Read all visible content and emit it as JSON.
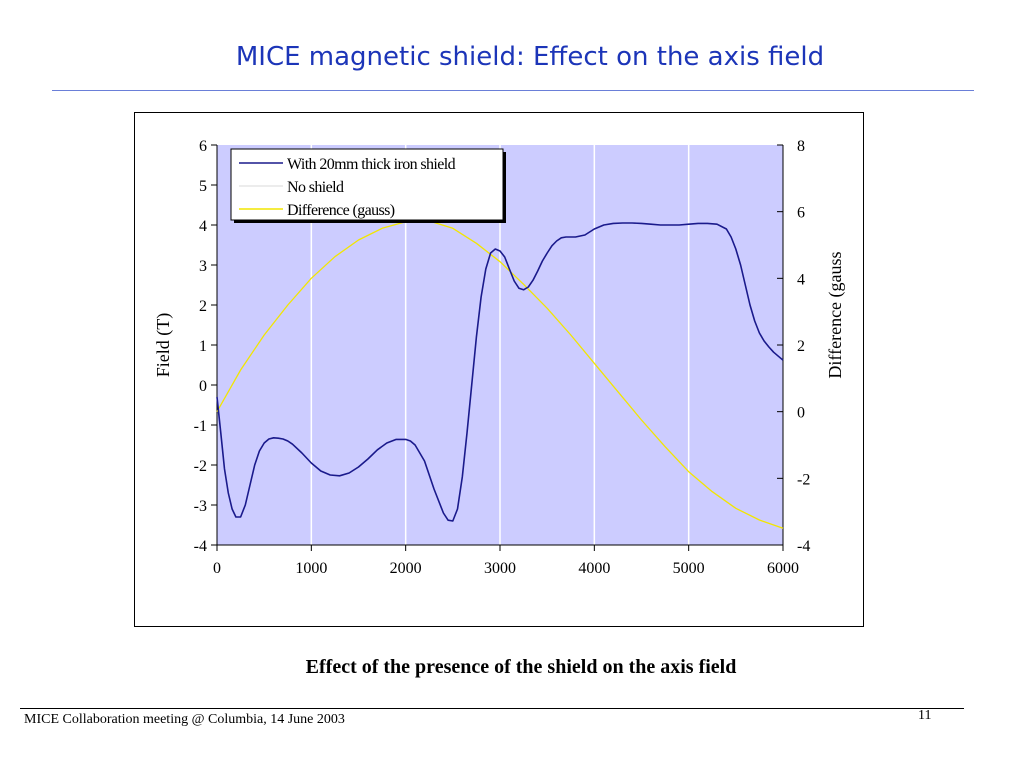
{
  "slide": {
    "title": "MICE magnetic shield: Effect on the axis field",
    "caption": "Effect of the presence of the  shield on the axis field",
    "footer": "MICE Collaboration meeting @ Columbia, 14 June 2003",
    "page_number": "11"
  },
  "chart_data": {
    "type": "line",
    "xlabel": "",
    "ylabel": "Field (T)",
    "y2label": "Difference (gauss",
    "xlim": [
      0,
      6000
    ],
    "ylim": [
      -4,
      6
    ],
    "y2lim": [
      -4,
      8
    ],
    "xticks": [
      "0",
      "1000",
      "2000",
      "3000",
      "4000",
      "5000",
      "6000"
    ],
    "yticks": [
      "6",
      "5",
      "4",
      "3",
      "2",
      "1",
      "0",
      "-1",
      "-2",
      "-3",
      "-4"
    ],
    "y2ticks": [
      "8",
      "6",
      "4",
      "2",
      "0",
      "-2",
      "-4"
    ],
    "grid": "vertical",
    "legend_position": "top-left",
    "plot_background": "#ccccff",
    "series": [
      {
        "name": "With 20mm thick iron shield",
        "axis": "left",
        "color": "#1a1a8c",
        "x": [
          0,
          40,
          80,
          120,
          160,
          200,
          250,
          300,
          350,
          400,
          450,
          500,
          550,
          600,
          650,
          700,
          750,
          800,
          900,
          1000,
          1100,
          1200,
          1300,
          1400,
          1500,
          1600,
          1700,
          1800,
          1900,
          2000,
          2050,
          2100,
          2200,
          2300,
          2400,
          2450,
          2500,
          2550,
          2600,
          2650,
          2700,
          2750,
          2800,
          2850,
          2900,
          2950,
          3000,
          3050,
          3100,
          3150,
          3200,
          3250,
          3300,
          3350,
          3400,
          3450,
          3500,
          3550,
          3600,
          3650,
          3700,
          3800,
          3900,
          4000,
          4100,
          4200,
          4300,
          4400,
          4500,
          4600,
          4700,
          4800,
          4900,
          5000,
          5100,
          5200,
          5300,
          5400,
          5450,
          5500,
          5550,
          5600,
          5650,
          5700,
          5750,
          5800,
          5850,
          5900,
          5950,
          6000
        ],
        "values": [
          -0.3,
          -1.2,
          -2.1,
          -2.7,
          -3.1,
          -3.3,
          -3.3,
          -3.0,
          -2.5,
          -2.0,
          -1.65,
          -1.45,
          -1.35,
          -1.32,
          -1.33,
          -1.35,
          -1.4,
          -1.48,
          -1.7,
          -1.95,
          -2.15,
          -2.25,
          -2.27,
          -2.2,
          -2.05,
          -1.85,
          -1.62,
          -1.45,
          -1.36,
          -1.36,
          -1.4,
          -1.5,
          -1.9,
          -2.6,
          -3.2,
          -3.38,
          -3.4,
          -3.1,
          -2.3,
          -1.2,
          0.0,
          1.2,
          2.2,
          2.9,
          3.3,
          3.4,
          3.35,
          3.2,
          2.9,
          2.6,
          2.42,
          2.38,
          2.45,
          2.62,
          2.85,
          3.1,
          3.3,
          3.48,
          3.6,
          3.68,
          3.7,
          3.7,
          3.75,
          3.9,
          4.0,
          4.04,
          4.05,
          4.05,
          4.04,
          4.02,
          4.0,
          4.0,
          4.0,
          4.02,
          4.04,
          4.04,
          4.02,
          3.9,
          3.7,
          3.4,
          3.0,
          2.5,
          2.0,
          1.6,
          1.3,
          1.1,
          0.95,
          0.82,
          0.72,
          0.62
        ]
      },
      {
        "name": "No shield",
        "axis": "left",
        "color": "#ffffff",
        "x": [],
        "values": []
      },
      {
        "name": "Difference (gauss)",
        "axis": "right",
        "color": "#f2e600",
        "x": [
          0,
          250,
          500,
          750,
          1000,
          1250,
          1500,
          1750,
          2000,
          2250,
          2500,
          2750,
          3000,
          3250,
          3500,
          3750,
          4000,
          4250,
          4500,
          4750,
          5000,
          5250,
          5500,
          5750,
          6000
        ],
        "values": [
          0.0,
          1.25,
          2.3,
          3.2,
          4.0,
          4.65,
          5.15,
          5.5,
          5.7,
          5.72,
          5.5,
          5.05,
          4.5,
          3.82,
          3.1,
          2.3,
          1.45,
          0.6,
          -0.25,
          -1.05,
          -1.8,
          -2.4,
          -2.9,
          -3.25,
          -3.5
        ]
      }
    ]
  }
}
